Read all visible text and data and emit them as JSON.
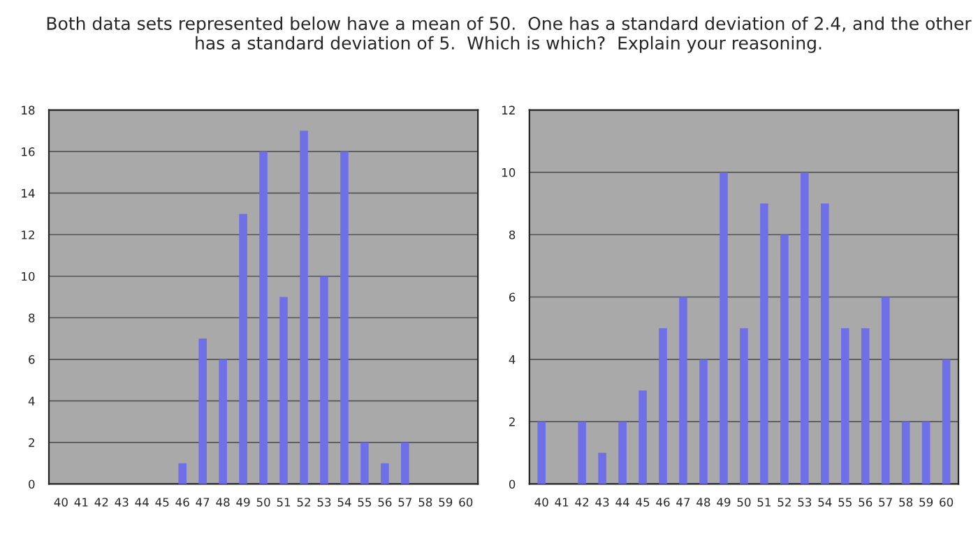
{
  "chart_data": [
    {
      "type": "bar",
      "title": "Both data sets represented below have a mean of 50.  One has a standard deviation of 2.4, and the other has a standard deviation of 5.  Which is which?  Explain your reasoning.",
      "categories": [
        "40",
        "41",
        "42",
        "43",
        "44",
        "45",
        "46",
        "47",
        "48",
        "49",
        "50",
        "51",
        "52",
        "53",
        "54",
        "55",
        "56",
        "57",
        "58",
        "59",
        "60"
      ],
      "values": [
        0,
        0,
        0,
        0,
        0,
        0,
        1,
        7,
        6,
        13,
        16,
        9,
        17,
        10,
        16,
        2,
        1,
        2,
        0,
        0,
        0
      ],
      "color": "#6f6fe8",
      "ylim": [
        0,
        18
      ],
      "yticks": [
        0,
        2,
        4,
        6,
        8,
        10,
        12,
        14,
        16,
        18
      ],
      "grid": "y"
    },
    {
      "type": "bar",
      "categories": [
        "40",
        "41",
        "42",
        "43",
        "44",
        "45",
        "46",
        "47",
        "48",
        "49",
        "50",
        "51",
        "52",
        "53",
        "54",
        "55",
        "56",
        "57",
        "58",
        "59",
        "60"
      ],
      "values": [
        2,
        0,
        2,
        1,
        2,
        3,
        5,
        6,
        4,
        10,
        5,
        9,
        8,
        10,
        9,
        5,
        5,
        6,
        2,
        2,
        4
      ],
      "color": "#6f6fe8",
      "ylim": [
        0,
        12
      ],
      "yticks": [
        0,
        2,
        4,
        6,
        8,
        10,
        12
      ],
      "grid": "y"
    }
  ]
}
